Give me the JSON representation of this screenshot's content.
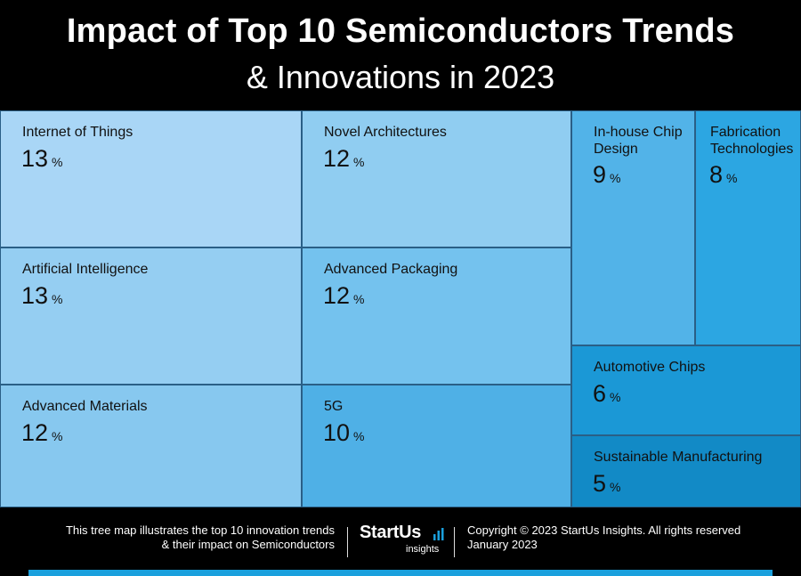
{
  "header": {
    "title_line1": "Impact of Top 10 Semiconductors Trends",
    "title_line2": "& Innovations in 2023"
  },
  "chart_data": {
    "type": "treemap",
    "title": "Impact of Top 10 Semiconductors Trends & Innovations in 2023",
    "unit": "%",
    "items": [
      {
        "label": "Internet of Things",
        "value": 13,
        "color": "#a9d6f6"
      },
      {
        "label": "Artificial Intelligence",
        "value": 13,
        "color": "#95cef2"
      },
      {
        "label": "Advanced Materials",
        "value": 12,
        "color": "#87c8ef"
      },
      {
        "label": "Novel Architectures",
        "value": 12,
        "color": "#90cdf1"
      },
      {
        "label": "Advanced Packaging",
        "value": 12,
        "color": "#74c2ee"
      },
      {
        "label": "5G",
        "value": 10,
        "color": "#4fb0e6"
      },
      {
        "label": "In-house Chip Design",
        "value": 9,
        "color": "#52b3e8"
      },
      {
        "label": "Fabrication Technologies",
        "value": 8,
        "color": "#2ca6e2"
      },
      {
        "label": "Automotive Chips",
        "value": 6,
        "color": "#1b98d6"
      },
      {
        "label": "Sustainable Manufacturing",
        "value": 5,
        "color": "#128ac6"
      }
    ]
  },
  "footer": {
    "left_line1": "This tree map illustrates the top 10 innovation trends",
    "left_line2": "& their impact on Semiconductors",
    "logo_brand": "StartUs",
    "logo_sub": "insights",
    "right_line1": "Copyright © 2023 StartUs Insights. All rights reserved",
    "right_line2": "January 2023"
  }
}
